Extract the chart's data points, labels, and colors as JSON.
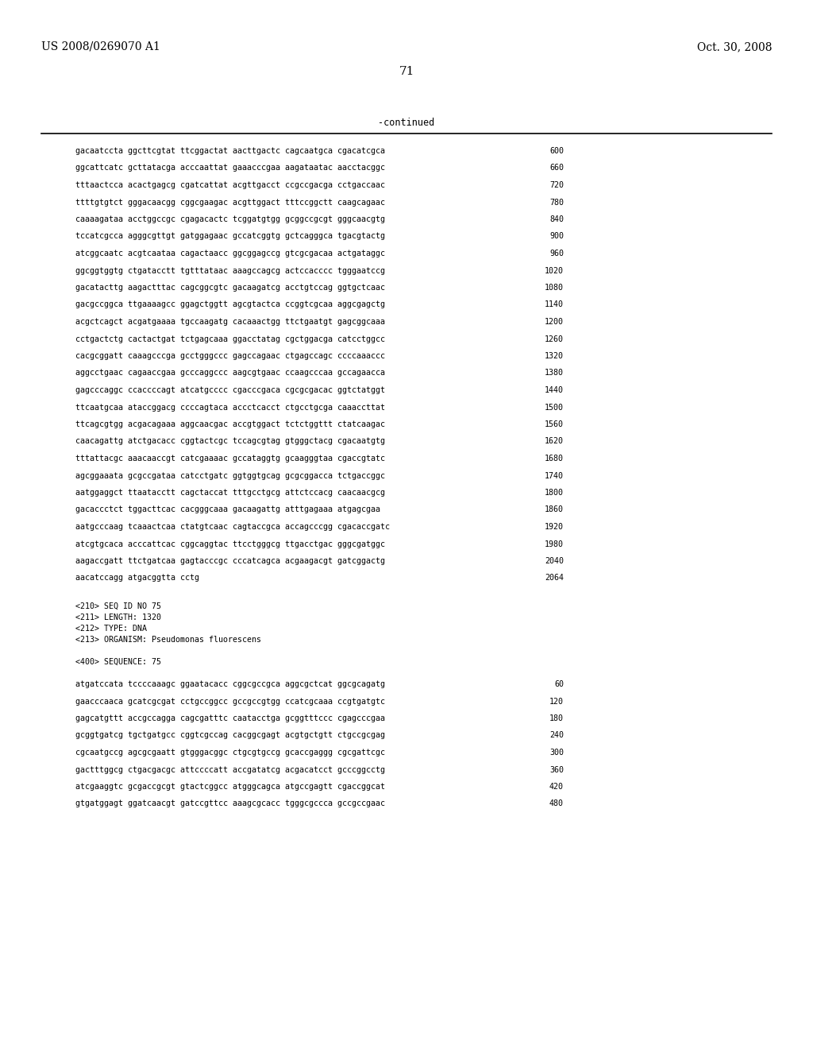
{
  "header_left": "US 2008/0269070 A1",
  "header_right": "Oct. 30, 2008",
  "page_number": "71",
  "continued_label": "-continued",
  "background_color": "#ffffff",
  "text_color": "#000000",
  "sequence_lines": [
    {
      "seq": "gacaatccta ggcttcgtat ttcggactat aacttgactc cagcaatgca cgacatcgca",
      "num": "600"
    },
    {
      "seq": "ggcattcatc gcttatacga acccaattat gaaacccgaa aagataatac aacctacggc",
      "num": "660"
    },
    {
      "seq": "tttaactcca acactgagcg cgatcattat acgttgacct ccgccgacga cctgaccaac",
      "num": "720"
    },
    {
      "seq": "ttttgtgtct gggacaacgg cggcgaagac acgttggact tttccggctt caagcagaac",
      "num": "780"
    },
    {
      "seq": "caaaagataa acctggccgc cgagacactc tcggatgtgg gcggccgcgt gggcaacgtg",
      "num": "840"
    },
    {
      "seq": "tccatcgcca agggcgttgt gatggagaac gccatcggtg gctcagggca tgacgtactg",
      "num": "900"
    },
    {
      "seq": "atcggcaatc acgtcaataa cagactaacc ggcggagccg gtcgcgacaa actgataggc",
      "num": "960"
    },
    {
      "seq": "ggcggtggtg ctgatacctt tgtttataac aaagccagcg actccacccc tgggaatccg",
      "num": "1020"
    },
    {
      "seq": "gacatacttg aagactttac cagcggcgtc gacaagatcg acctgtccag ggtgctcaac",
      "num": "1080"
    },
    {
      "seq": "gacgccggca ttgaaaagcc ggagctggtt agcgtactca ccggtcgcaa aggcgagctg",
      "num": "1140"
    },
    {
      "seq": "acgctcagct acgatgaaaa tgccaagatg cacaaactgg ttctgaatgt gagcggcaaa",
      "num": "1200"
    },
    {
      "seq": "cctgactctg cactactgat tctgagcaaa ggacctatag cgctggacga catcctggcc",
      "num": "1260"
    },
    {
      "seq": "cacgcggatt caaagcccga gcctgggccc gagccagaac ctgagccagc ccccaaaccc",
      "num": "1320"
    },
    {
      "seq": "aggcctgaac cagaaccgaa gcccaggccc aagcgtgaac ccaagcccaa gccagaacca",
      "num": "1380"
    },
    {
      "seq": "gagcccaggc ccaccccagt atcatgcccc cgacccgaca cgcgcgacac ggtctatggt",
      "num": "1440"
    },
    {
      "seq": "ttcaatgcaa ataccggacg ccccagtaca accctcacct ctgcctgcga caaaccttat",
      "num": "1500"
    },
    {
      "seq": "ttcagcgtgg acgacagaaa aggcaacgac accgtggact tctctggttt ctatcaagac",
      "num": "1560"
    },
    {
      "seq": "caacagattg atctgacacc cggtactcgc tccagcgtag gtgggctacg cgacaatgtg",
      "num": "1620"
    },
    {
      "seq": "tttattacgc aaacaaccgt catcgaaaac gccataggtg gcaagggtaa cgaccgtatc",
      "num": "1680"
    },
    {
      "seq": "agcggaaata gcgccgataa catcctgatc ggtggtgcag gcgcggacca tctgaccggc",
      "num": "1740"
    },
    {
      "seq": "aatggaggct ttaatacctt cagctaccat tttgcctgcg attctccacg caacaacgcg",
      "num": "1800"
    },
    {
      "seq": "gacaccctct tggacttcac cacgggcaaa gacaagattg atttgagaaa atgagcgaa",
      "num": "1860"
    },
    {
      "seq": "aatgcccaag tcaaactcaa ctatgtcaac cagtaccgca accagcccgg cgacaccgatc",
      "num": "1920"
    },
    {
      "seq": "atcgtgcaca acccattcac cggcaggtac ttcctgggcg ttgacctgac gggcgatggc",
      "num": "1980"
    },
    {
      "seq": "aagaccgatt ttctgatcaa gagtacccgc cccatcagca acgaagacgt gatcggactg",
      "num": "2040"
    },
    {
      "seq": "aacatccagg atgacggtta cctg",
      "num": "2064"
    }
  ],
  "meta_header_lines": [
    "<210> SEQ ID NO 75",
    "<211> LENGTH: 1320",
    "<212> TYPE: DNA",
    "<213> ORGANISM: Pseudomonas fluorescens"
  ],
  "seq400_label": "<400> SEQUENCE: 75",
  "seq400_lines": [
    {
      "seq": "atgatccata tccccaaagc ggaatacacc cggcgccgca aggcgctcat ggcgcagatg",
      "num": "60"
    },
    {
      "seq": "gaacccaaca gcatcgcgat cctgccggcc gccgccgtgg ccatcgcaaa ccgtgatgtc",
      "num": "120"
    },
    {
      "seq": "gagcatgttt accgccagga cagcgatttc caatacctga gcggtttccc cgagcccgaa",
      "num": "180"
    },
    {
      "seq": "gcggtgatcg tgctgatgcc cggtcgccag cacggcgagt acgtgctgtt ctgccgcgag",
      "num": "240"
    },
    {
      "seq": "cgcaatgccg agcgcgaatt gtgggacggc ctgcgtgccg gcaccgaggg cgcgattcgc",
      "num": "300"
    },
    {
      "seq": "gactttggcg ctgacgacgc attccccatt accgatatcg acgacatcct gcccggcctg",
      "num": "360"
    },
    {
      "seq": "atcgaaggtc gcgaccgcgt gtactcggcc atgggcagca atgccgagtt cgaccggcat",
      "num": "420"
    },
    {
      "seq": "gtgatggagt ggatcaacgt gatccgttcc aaagcgcacc tgggcgccca gccgccgaac",
      "num": "480"
    }
  ]
}
